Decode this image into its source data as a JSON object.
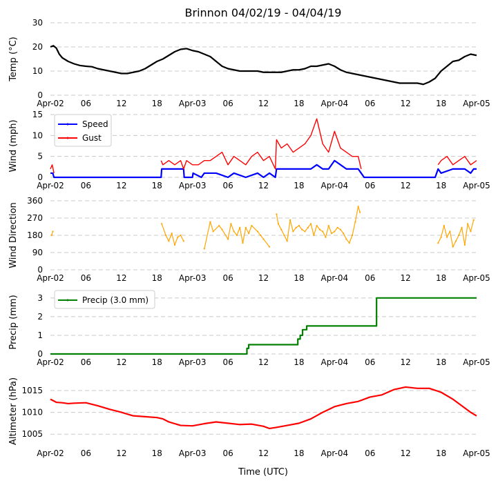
{
  "title": "Brinnon 04/02/19 - 04/04/19",
  "x_axis": {
    "label": "Time (UTC)",
    "range_hours": [
      0,
      72
    ],
    "ticks": [
      {
        "hour": 0,
        "label": "Apr-02"
      },
      {
        "hour": 6,
        "label": "06"
      },
      {
        "hour": 12,
        "label": "12"
      },
      {
        "hour": 18,
        "label": "18"
      },
      {
        "hour": 24,
        "label": "Apr-03"
      },
      {
        "hour": 30,
        "label": "06"
      },
      {
        "hour": 36,
        "label": "12"
      },
      {
        "hour": 42,
        "label": "18"
      },
      {
        "hour": 48,
        "label": "Apr-04"
      },
      {
        "hour": 54,
        "label": "06"
      },
      {
        "hour": 60,
        "label": "12"
      },
      {
        "hour": 66,
        "label": "18"
      },
      {
        "hour": 72,
        "label": "Apr-05"
      }
    ]
  },
  "colors": {
    "temp": "#000000",
    "speed": "#0000ff",
    "gust": "#ff0000",
    "direction": "#ffa500",
    "precip": "#008000",
    "altimeter": "#ff0000",
    "grid": "#c8c8c8"
  },
  "chart_data": [
    {
      "id": "temp",
      "type": "line",
      "ylabel": "Temp (°C)",
      "ylim": [
        0,
        30
      ],
      "yticks": [
        0,
        10,
        20,
        30
      ],
      "series": [
        {
          "name": "Temp",
          "color_key": "temp",
          "x": [
            0,
            0.5,
            1,
            1.5,
            2,
            3,
            4,
            5,
            6,
            7,
            8,
            9,
            10,
            11,
            12,
            13,
            14,
            15,
            16,
            17,
            18,
            19,
            20,
            21,
            22,
            23,
            24,
            25,
            26,
            27,
            28,
            29,
            30,
            31,
            32,
            33,
            34,
            35,
            36,
            37,
            38,
            39,
            40,
            41,
            42,
            43,
            44,
            45,
            46,
            47,
            48,
            49,
            50,
            51,
            52,
            53,
            54,
            55,
            56,
            57,
            58,
            59,
            60,
            61,
            62,
            63,
            64,
            65,
            66,
            67,
            68,
            69,
            70,
            71,
            72
          ],
          "y": [
            20,
            20.5,
            19.5,
            17,
            15.5,
            14,
            13,
            12.3,
            12,
            11.8,
            11,
            10.5,
            10,
            9.5,
            9,
            9,
            9.5,
            10,
            11,
            12.5,
            14,
            15,
            16.5,
            18,
            19,
            19.3,
            18.5,
            18,
            17,
            16,
            14,
            12,
            11,
            10.5,
            10,
            10,
            10,
            10,
            9.5,
            9.5,
            9.5,
            9.5,
            10,
            10.5,
            10.5,
            11,
            12,
            12,
            12.5,
            13,
            12,
            10.5,
            9.5,
            9,
            8.5,
            8,
            7.5,
            7,
            6.5,
            6,
            5.5,
            5,
            5,
            5,
            5,
            4.5,
            5.5,
            7,
            10,
            12,
            14,
            14.5,
            16,
            17,
            16.5
          ]
        }
      ]
    },
    {
      "id": "wind",
      "type": "line",
      "ylabel": "Wind (mph)",
      "ylim": [
        0,
        15
      ],
      "yticks": [
        0,
        5,
        10,
        15
      ],
      "legend": [
        "Speed",
        "Gust"
      ],
      "series": [
        {
          "name": "Speed",
          "color_key": "speed",
          "spiky": false,
          "x": [
            0,
            0.4,
            0.6,
            18.7,
            18.8,
            22.5,
            22.6,
            24,
            24.1,
            25.5,
            26,
            28,
            30,
            31,
            33,
            35,
            36,
            37,
            38,
            38.2,
            40,
            42,
            44,
            45,
            46,
            47,
            48,
            49,
            50,
            51,
            52,
            52.5,
            53,
            54,
            60,
            65,
            65.5,
            66,
            68,
            70,
            71,
            71.5,
            72
          ],
          "y": [
            1,
            1,
            0,
            0,
            2,
            2,
            0,
            0,
            1,
            0,
            1,
            1,
            0,
            1,
            0,
            1,
            0,
            1,
            0,
            2,
            2,
            2,
            2,
            3,
            2,
            2,
            4,
            3,
            2,
            2,
            2,
            1,
            0,
            0,
            0,
            0,
            2,
            1,
            2,
            2,
            1,
            2,
            2
          ]
        },
        {
          "name": "Gust",
          "color_key": "gust",
          "spiky": true,
          "x": [
            0,
            0.3,
            0.6,
            18.7,
            19,
            20,
            21,
            22,
            22.5,
            23,
            24,
            25,
            26,
            27,
            28,
            29,
            30,
            31,
            32,
            33,
            34,
            35,
            36,
            37,
            38,
            38.2,
            39,
            40,
            41,
            42,
            43,
            44,
            45,
            46,
            47,
            48,
            49,
            50,
            51,
            52,
            52.5,
            65.5,
            66,
            67,
            68,
            69,
            70,
            71,
            72
          ],
          "y": [
            2,
            3,
            1,
            4,
            3,
            4,
            3,
            4,
            2,
            4,
            3,
            3,
            4,
            4,
            5,
            6,
            3,
            5,
            4,
            3,
            5,
            6,
            4,
            5,
            2,
            9,
            7,
            8,
            6,
            7,
            8,
            10,
            14,
            8,
            6,
            11,
            7,
            6,
            5,
            5,
            2,
            3,
            4,
            5,
            3,
            4,
            5,
            3,
            4
          ]
        }
      ]
    },
    {
      "id": "direction",
      "type": "scatter",
      "ylabel": "Wind Direction",
      "ylim": [
        0,
        360
      ],
      "yticks": [
        0,
        90,
        180,
        270,
        360
      ],
      "series": [
        {
          "name": "Direction",
          "color_key": "direction",
          "x": [
            0.2,
            0.4,
            18.8,
            19.5,
            20,
            20.5,
            21,
            21.5,
            22,
            22.5,
            26,
            27,
            27.5,
            28.5,
            29,
            30,
            30.5,
            31,
            31.5,
            32,
            32.5,
            33,
            33.5,
            34,
            35,
            35.5,
            36,
            37,
            38.2,
            38.5,
            39,
            39.5,
            40,
            40.5,
            41,
            41.5,
            42,
            42.5,
            43,
            43.5,
            44,
            44.5,
            45,
            45.5,
            46,
            46.5,
            47,
            47.5,
            48,
            48.5,
            49,
            49.5,
            50,
            50.5,
            51,
            51.5,
            52,
            52.3,
            65.5,
            66,
            66.5,
            67,
            67.5,
            68,
            68.5,
            69,
            69.5,
            70,
            70.5,
            71,
            71.5
          ],
          "y": [
            180,
            200,
            240,
            180,
            150,
            190,
            130,
            170,
            180,
            150,
            110,
            250,
            200,
            230,
            210,
            160,
            240,
            200,
            180,
            220,
            140,
            220,
            190,
            230,
            200,
            180,
            160,
            120,
            290,
            240,
            210,
            180,
            150,
            260,
            200,
            220,
            230,
            210,
            200,
            220,
            240,
            180,
            230,
            210,
            200,
            170,
            230,
            190,
            200,
            220,
            210,
            190,
            160,
            140,
            180,
            250,
            330,
            300,
            140,
            170,
            230,
            170,
            200,
            120,
            150,
            180,
            220,
            130,
            240,
            200,
            260
          ]
        }
      ]
    },
    {
      "id": "precip",
      "type": "line",
      "ylabel": "Precip (mm)",
      "ylim": [
        0,
        3.4
      ],
      "yticks": [
        0,
        1,
        2,
        3
      ],
      "legend": [
        "Precip (3.0 mm)"
      ],
      "series": [
        {
          "name": "Precip (3.0 mm)",
          "color_key": "precip",
          "step": true,
          "x": [
            0,
            33,
            33.2,
            33.5,
            41.5,
            41.8,
            42.2,
            42.6,
            43,
            43.3,
            55,
            55.1,
            72
          ],
          "y": [
            0,
            0,
            0.3,
            0.5,
            0.5,
            0.8,
            1,
            1.3,
            1.3,
            1.5,
            1.5,
            3,
            3
          ]
        }
      ]
    },
    {
      "id": "altimeter",
      "type": "line",
      "ylabel": "Altimeter (hPa)",
      "ylim": [
        1002.5,
        1018
      ],
      "yticks": [
        1005,
        1010,
        1015
      ],
      "series": [
        {
          "name": "Altimeter",
          "color_key": "altimeter",
          "x": [
            0,
            1,
            2,
            3,
            4,
            6,
            8,
            10,
            12,
            14,
            16,
            18,
            19,
            20,
            22,
            24,
            26,
            28,
            30,
            32,
            34,
            36,
            37,
            38,
            40,
            42,
            44,
            46,
            48,
            50,
            52,
            54,
            56,
            58,
            60,
            62,
            64,
            66,
            68,
            70,
            71,
            72
          ],
          "y": [
            1013,
            1012.3,
            1012.2,
            1012,
            1012.1,
            1012.2,
            1011.5,
            1010.7,
            1010,
            1009.2,
            1009,
            1008.8,
            1008.5,
            1007.8,
            1007,
            1006.9,
            1007.4,
            1007.8,
            1007.5,
            1007.2,
            1007.3,
            1006.8,
            1006.3,
            1006.5,
            1007,
            1007.5,
            1008.5,
            1010,
            1011.3,
            1012,
            1012.5,
            1013.5,
            1014,
            1015.2,
            1015.8,
            1015.5,
            1015.5,
            1014.6,
            1013,
            1011,
            1010,
            1009.2
          ]
        }
      ]
    }
  ]
}
